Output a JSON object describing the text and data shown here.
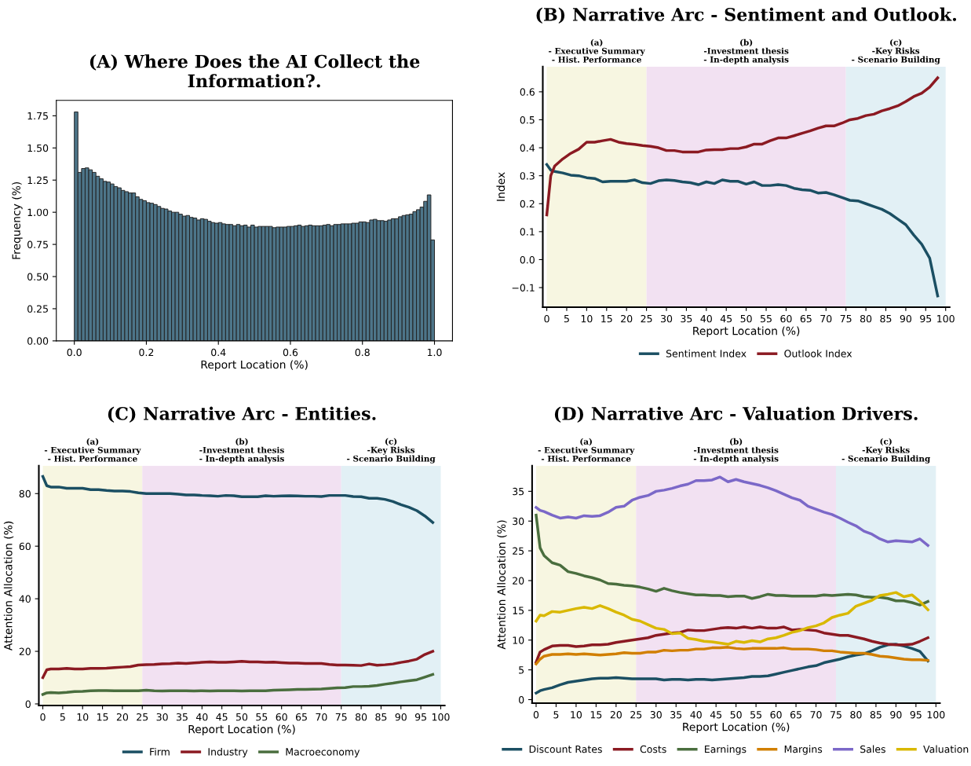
{
  "chart_data": [
    {
      "type": "histogram",
      "title": "(A) Where Does the AI Collect the\nInformation?.",
      "xlabel": "Report Location (%)",
      "ylabel": "Frequency (%)",
      "color": "#4d7589",
      "grid": false,
      "bins": [
        0,
        0.01,
        0.02,
        0.03,
        0.04,
        0.05,
        0.06,
        0.07,
        0.08,
        0.09,
        0.1,
        0.11,
        0.12,
        0.13,
        0.14,
        0.15,
        0.16,
        0.17,
        0.18,
        0.19,
        0.2,
        0.21,
        0.22,
        0.23,
        0.24,
        0.25,
        0.26,
        0.27,
        0.28,
        0.29,
        0.3,
        0.31,
        0.32,
        0.33,
        0.34,
        0.35,
        0.36,
        0.37,
        0.38,
        0.39,
        0.4,
        0.41,
        0.42,
        0.43,
        0.44,
        0.45,
        0.46,
        0.47,
        0.48,
        0.49,
        0.5,
        0.51,
        0.52,
        0.53,
        0.54,
        0.55,
        0.56,
        0.57,
        0.58,
        0.59,
        0.6,
        0.61,
        0.62,
        0.63,
        0.64,
        0.65,
        0.66,
        0.67,
        0.68,
        0.69,
        0.7,
        0.71,
        0.72,
        0.73,
        0.74,
        0.75,
        0.76,
        0.77,
        0.78,
        0.79,
        0.8,
        0.81,
        0.82,
        0.83,
        0.84,
        0.85,
        0.86,
        0.87,
        0.88,
        0.89,
        0.9,
        0.91,
        0.92,
        0.93,
        0.94,
        0.95,
        0.96,
        0.97,
        0.98,
        0.99,
        1.0
      ],
      "values": [
        1.78,
        1.31,
        1.34,
        1.345,
        1.33,
        1.31,
        1.28,
        1.26,
        1.24,
        1.235,
        1.22,
        1.2,
        1.19,
        1.17,
        1.16,
        1.15,
        1.15,
        1.12,
        1.1,
        1.09,
        1.075,
        1.07,
        1.06,
        1.045,
        1.03,
        1.025,
        1.01,
        1.0,
        1.0,
        0.985,
        0.97,
        0.975,
        0.96,
        0.955,
        0.94,
        0.95,
        0.945,
        0.93,
        0.92,
        0.915,
        0.92,
        0.91,
        0.905,
        0.905,
        0.895,
        0.905,
        0.895,
        0.9,
        0.885,
        0.9,
        0.885,
        0.89,
        0.89,
        0.89,
        0.89,
        0.88,
        0.885,
        0.885,
        0.885,
        0.89,
        0.89,
        0.895,
        0.9,
        0.89,
        0.895,
        0.9,
        0.895,
        0.895,
        0.895,
        0.9,
        0.905,
        0.895,
        0.905,
        0.905,
        0.91,
        0.91,
        0.91,
        0.915,
        0.915,
        0.925,
        0.925,
        0.92,
        0.94,
        0.945,
        0.935,
        0.935,
        0.93,
        0.94,
        0.95,
        0.95,
        0.965,
        0.975,
        0.98,
        0.985,
        1.005,
        1.02,
        1.04,
        1.085,
        1.135,
        0.785
      ],
      "xlim": [
        -0.05,
        1.05
      ],
      "ylim": [
        0,
        1.87
      ],
      "xticks": [
        {
          "value": 0,
          "label": "0.0"
        },
        {
          "value": 0.2,
          "label": "0.2"
        },
        {
          "value": 0.4,
          "label": "0.4"
        },
        {
          "value": 0.6,
          "label": "0.6"
        },
        {
          "value": 0.8,
          "label": "0.8"
        },
        {
          "value": 1,
          "label": "1.0"
        }
      ],
      "yticks": [
        {
          "value": 0,
          "label": "0.00"
        },
        {
          "value": 0.25,
          "label": "0.25"
        },
        {
          "value": 0.5,
          "label": "0.50"
        },
        {
          "value": 0.75,
          "label": "0.75"
        },
        {
          "value": 1,
          "label": "1.00"
        },
        {
          "value": 1.25,
          "label": "1.25"
        },
        {
          "value": 1.5,
          "label": "1.50"
        },
        {
          "value": 1.75,
          "label": "1.75"
        }
      ]
    },
    {
      "type": "line",
      "title": "(B) Narrative Arc - Sentiment and Outlook.",
      "xlabel": "Report Location (%)",
      "ylabel": "Index",
      "grid": false,
      "legend": "bottom",
      "x": [
        0,
        1,
        2,
        4,
        6,
        8,
        10,
        12,
        14,
        16,
        18,
        20,
        22,
        24,
        26,
        28,
        30,
        32,
        34,
        36,
        38,
        40,
        42,
        44,
        46,
        48,
        50,
        52,
        54,
        56,
        58,
        60,
        62,
        64,
        66,
        68,
        70,
        72,
        74,
        76,
        78,
        80,
        82,
        84,
        86,
        88,
        90,
        92,
        94,
        96,
        98
      ],
      "series": [
        {
          "name": "Sentiment Index",
          "color": "#1b4f63",
          "values": [
            0.34,
            0.32,
            0.315,
            0.31,
            0.302,
            0.3,
            0.293,
            0.29,
            0.278,
            0.28,
            0.28,
            0.28,
            0.285,
            0.275,
            0.272,
            0.282,
            0.285,
            0.283,
            0.278,
            0.275,
            0.268,
            0.278,
            0.272,
            0.285,
            0.28,
            0.28,
            0.27,
            0.278,
            0.265,
            0.265,
            0.268,
            0.265,
            0.255,
            0.25,
            0.248,
            0.238,
            0.24,
            0.232,
            0.222,
            0.212,
            0.21,
            0.2,
            0.19,
            0.18,
            0.165,
            0.145,
            0.125,
            0.088,
            0.055,
            0.005,
            -0.13
          ]
        },
        {
          "name": "Outlook Index",
          "color": "#8b1a22",
          "values": [
            0.16,
            0.3,
            0.335,
            0.36,
            0.38,
            0.395,
            0.42,
            0.42,
            0.425,
            0.43,
            0.42,
            0.415,
            0.412,
            0.408,
            0.405,
            0.4,
            0.39,
            0.39,
            0.385,
            0.385,
            0.385,
            0.392,
            0.393,
            0.393,
            0.397,
            0.397,
            0.403,
            0.413,
            0.413,
            0.425,
            0.435,
            0.435,
            0.443,
            0.452,
            0.46,
            0.47,
            0.478,
            0.478,
            0.488,
            0.5,
            0.505,
            0.515,
            0.52,
            0.532,
            0.54,
            0.55,
            0.565,
            0.583,
            0.595,
            0.617,
            0.65
          ]
        }
      ],
      "bands": [
        {
          "axis": "x",
          "from": 0,
          "to": 25,
          "label": "(a)\n- Executive Summary\n- Hist. Performance",
          "color": "#f7f6e1"
        },
        {
          "axis": "x",
          "from": 25,
          "to": 75,
          "label": "(b)\n-Investment thesis\n- In-depth analysis",
          "color": "#f2e1f2"
        },
        {
          "axis": "x",
          "from": 75,
          "to": 100,
          "label": "(c)\n-Key Risks\n- Scenario Building",
          "color": "#e2f0f5"
        }
      ],
      "xlim": [
        -1,
        101
      ],
      "ylim": [
        -0.17,
        0.69
      ],
      "xticks": [
        0,
        5,
        10,
        15,
        20,
        25,
        30,
        35,
        40,
        45,
        50,
        55,
        60,
        65,
        70,
        75,
        80,
        85,
        90,
        95,
        100
      ],
      "yticks": [
        {
          "value": -0.1,
          "label": "−0.1"
        },
        {
          "value": 0,
          "label": "0.0"
        },
        {
          "value": 0.1,
          "label": "0.1"
        },
        {
          "value": 0.2,
          "label": "0.2"
        },
        {
          "value": 0.3,
          "label": "0.3"
        },
        {
          "value": 0.4,
          "label": "0.4"
        },
        {
          "value": 0.5,
          "label": "0.5"
        },
        {
          "value": 0.6,
          "label": "0.6"
        }
      ]
    },
    {
      "type": "line",
      "title": "(C) Narrative Arc - Entities.",
      "xlabel": "Report Location (%)",
      "ylabel": "Attention Allocation (%)",
      "grid": false,
      "legend": "bottom",
      "x": [
        0,
        1,
        2,
        4,
        6,
        8,
        10,
        12,
        14,
        16,
        18,
        20,
        22,
        24,
        26,
        28,
        30,
        32,
        34,
        36,
        38,
        40,
        42,
        44,
        46,
        48,
        50,
        52,
        54,
        56,
        58,
        60,
        62,
        64,
        66,
        68,
        70,
        72,
        74,
        76,
        78,
        80,
        82,
        84,
        86,
        88,
        90,
        92,
        94,
        96,
        98
      ],
      "series": [
        {
          "name": "Firm",
          "color": "#1b4f63",
          "values": [
            86.5,
            83,
            82.5,
            82.5,
            82,
            82,
            82,
            81.5,
            81.5,
            81.2,
            81,
            81,
            80.8,
            80.3,
            80,
            80,
            80,
            80,
            79.8,
            79.5,
            79.5,
            79.3,
            79.2,
            79,
            79.3,
            79.2,
            78.8,
            78.8,
            78.8,
            79.2,
            79,
            79.1,
            79.2,
            79.1,
            79,
            79,
            78.9,
            79.3,
            79.3,
            79.3,
            78.9,
            78.8,
            78.2,
            78.2,
            77.8,
            77,
            75.8,
            74.8,
            73.5,
            71.5,
            69
          ]
        },
        {
          "name": "Industry",
          "color": "#8b1a22",
          "values": [
            10,
            13,
            13.3,
            13.3,
            13.5,
            13.3,
            13.3,
            13.5,
            13.5,
            13.6,
            13.8,
            14,
            14.2,
            14.8,
            14.9,
            15,
            15.2,
            15.3,
            15.5,
            15.4,
            15.6,
            15.8,
            16,
            15.8,
            15.8,
            16,
            16.2,
            16,
            16,
            15.8,
            15.9,
            15.7,
            15.5,
            15.5,
            15.4,
            15.4,
            15.4,
            15,
            14.8,
            14.8,
            14.7,
            14.6,
            15.2,
            14.7,
            14.9,
            15.2,
            15.8,
            16.3,
            17,
            18.8,
            20
          ]
        },
        {
          "name": "Macroeconomy",
          "color": "#4a6e3e",
          "values": [
            3.6,
            4.2,
            4.3,
            4.2,
            4.4,
            4.7,
            4.8,
            5,
            5.1,
            5.1,
            5,
            5,
            5,
            5,
            5.2,
            5,
            4.9,
            5,
            5,
            5,
            4.9,
            5,
            4.9,
            5,
            5,
            5,
            4.9,
            5,
            5,
            5,
            5.2,
            5.3,
            5.4,
            5.5,
            5.5,
            5.6,
            5.7,
            5.9,
            6.1,
            6.2,
            6.6,
            6.6,
            6.7,
            7,
            7.5,
            7.9,
            8.4,
            8.8,
            9.2,
            10.2,
            11.2
          ]
        }
      ],
      "bands": [
        {
          "axis": "x",
          "from": 0,
          "to": 25,
          "label": "(a)\n- Executive Summary\n- Hist. Performance",
          "color": "#f7f6e1"
        },
        {
          "axis": "x",
          "from": 25,
          "to": 75,
          "label": "(b)\n-Investment thesis\n- In-depth analysis",
          "color": "#f2e1f2"
        },
        {
          "axis": "x",
          "from": 75,
          "to": 100,
          "label": "(c)\n-Key Risks\n- Scenario Building",
          "color": "#e2f0f5"
        }
      ],
      "xlim": [
        -1,
        101
      ],
      "ylim": [
        -0.6,
        90.6
      ],
      "xticks": [
        0,
        5,
        10,
        15,
        20,
        25,
        30,
        35,
        40,
        45,
        50,
        55,
        60,
        65,
        70,
        75,
        80,
        85,
        90,
        95,
        100
      ],
      "yticks": [
        0,
        20,
        40,
        60,
        80
      ]
    },
    {
      "type": "line",
      "title": "(D) Narrative Arc - Valuation Drivers.",
      "xlabel": "Report Location (%)",
      "ylabel": "Attention Allocation (%)",
      "grid": false,
      "legend": "bottom",
      "x": [
        0,
        1,
        2,
        4,
        6,
        8,
        10,
        12,
        14,
        16,
        18,
        20,
        22,
        24,
        26,
        28,
        30,
        32,
        34,
        36,
        38,
        40,
        42,
        44,
        46,
        48,
        50,
        52,
        54,
        56,
        58,
        60,
        62,
        64,
        66,
        68,
        70,
        72,
        74,
        76,
        78,
        80,
        82,
        84,
        86,
        88,
        90,
        92,
        94,
        96,
        98
      ],
      "series": [
        {
          "name": "Discount Rates",
          "color": "#1b4f63",
          "values": [
            1.1,
            1.5,
            1.7,
            2,
            2.5,
            2.9,
            3.1,
            3.3,
            3.5,
            3.6,
            3.6,
            3.7,
            3.6,
            3.5,
            3.5,
            3.5,
            3.5,
            3.3,
            3.4,
            3.4,
            3.3,
            3.4,
            3.4,
            3.3,
            3.4,
            3.5,
            3.6,
            3.7,
            3.9,
            3.9,
            4,
            4.3,
            4.6,
            4.9,
            5.2,
            5.5,
            5.7,
            6.2,
            6.5,
            6.8,
            7.2,
            7.5,
            7.7,
            8.2,
            8.8,
            9.2,
            9.3,
            9,
            8.6,
            8.1,
            6.5
          ]
        },
        {
          "name": "Costs",
          "color": "#8b1a22",
          "values": [
            6.3,
            8,
            8.4,
            9,
            9.1,
            9.1,
            8.9,
            9,
            9.2,
            9.2,
            9.3,
            9.6,
            9.8,
            10,
            10.2,
            10.4,
            10.8,
            11,
            11.2,
            11.3,
            11.7,
            11.6,
            11.6,
            11.8,
            12,
            12.1,
            12,
            12.2,
            12,
            12.2,
            12,
            12,
            12.2,
            11.7,
            11.8,
            11.7,
            11.6,
            11.2,
            11,
            10.8,
            10.8,
            10.5,
            10.2,
            9.8,
            9.5,
            9.3,
            9.2,
            9.2,
            9.3,
            9.8,
            10.4
          ]
        },
        {
          "name": "Earnings",
          "color": "#4a6e3e",
          "values": [
            31,
            25.5,
            24.2,
            23,
            22.6,
            21.5,
            21.2,
            20.8,
            20.5,
            20.1,
            19.5,
            19.4,
            19.2,
            19.1,
            18.9,
            18.6,
            18.2,
            18.7,
            18.3,
            18,
            17.8,
            17.6,
            17.6,
            17.5,
            17.5,
            17.3,
            17.4,
            17.4,
            17,
            17.3,
            17.7,
            17.5,
            17.5,
            17.4,
            17.4,
            17.4,
            17.4,
            17.6,
            17.5,
            17.6,
            17.7,
            17.6,
            17.3,
            17.2,
            17.2,
            17,
            16.6,
            16.6,
            16.3,
            15.9,
            16.5
          ]
        },
        {
          "name": "Margins",
          "color": "#d17f00",
          "values": [
            6,
            6.8,
            7.3,
            7.6,
            7.6,
            7.7,
            7.6,
            7.7,
            7.6,
            7.5,
            7.6,
            7.7,
            7.9,
            7.8,
            7.8,
            8,
            8,
            8.3,
            8.2,
            8.3,
            8.3,
            8.5,
            8.5,
            8.7,
            8.7,
            8.8,
            8.6,
            8.5,
            8.6,
            8.6,
            8.6,
            8.6,
            8.7,
            8.5,
            8.5,
            8.5,
            8.4,
            8.2,
            8.2,
            8,
            7.9,
            7.8,
            7.8,
            7.6,
            7.3,
            7.2,
            7,
            6.8,
            6.7,
            6.7,
            6.6
          ]
        },
        {
          "name": "Sales",
          "color": "#7b68c8",
          "values": [
            32.3,
            31.8,
            31.6,
            31,
            30.5,
            30.7,
            30.5,
            30.9,
            30.8,
            30.9,
            31.5,
            32.3,
            32.5,
            33.5,
            34,
            34.3,
            35,
            35.2,
            35.5,
            35.9,
            36.2,
            36.8,
            36.8,
            36.9,
            37.4,
            36.6,
            37,
            36.6,
            36.3,
            36,
            35.6,
            35.1,
            34.5,
            33.9,
            33.5,
            32.5,
            32,
            31.5,
            31.1,
            30.5,
            29.8,
            29.2,
            28.3,
            27.8,
            27,
            26.5,
            26.7,
            26.6,
            26.5,
            27,
            25.9
          ]
        },
        {
          "name": "Valuation",
          "color": "#d9b800",
          "values": [
            13.2,
            14.2,
            14.1,
            14.8,
            14.7,
            15,
            15.3,
            15.5,
            15.3,
            15.8,
            15.3,
            14.7,
            14.2,
            13.5,
            13.2,
            12.6,
            12,
            11.8,
            11.1,
            11.2,
            10.3,
            10.1,
            9.8,
            9.7,
            9.5,
            9.3,
            9.8,
            9.6,
            9.9,
            9.7,
            10.2,
            10.4,
            10.8,
            11.3,
            11.6,
            12.1,
            12.4,
            12.9,
            13.8,
            14.2,
            14.5,
            15.7,
            16.2,
            16.7,
            17.5,
            17.7,
            18,
            17.3,
            17.6,
            16.5,
            15.1
          ]
        }
      ],
      "bands": [
        {
          "axis": "x",
          "from": 0,
          "to": 25,
          "label": "(a)\n- Executive Summary\n- Hist. Performance",
          "color": "#f7f6e1"
        },
        {
          "axis": "x",
          "from": 25,
          "to": 75,
          "label": "(b)\n-Investment thesis\n- In-depth analysis",
          "color": "#f2e1f2"
        },
        {
          "axis": "x",
          "from": 75,
          "to": 100,
          "label": "(c)\n-Key Risks\n- Scenario Building",
          "color": "#e2f0f5"
        }
      ],
      "xlim": [
        -1,
        101
      ],
      "ylim": [
        -0.6,
        39.3
      ],
      "xticks": [
        0,
        5,
        10,
        15,
        20,
        25,
        30,
        35,
        40,
        45,
        50,
        55,
        60,
        65,
        70,
        75,
        80,
        85,
        90,
        95,
        100
      ],
      "yticks": [
        0,
        5,
        10,
        15,
        20,
        25,
        30,
        35
      ]
    }
  ]
}
